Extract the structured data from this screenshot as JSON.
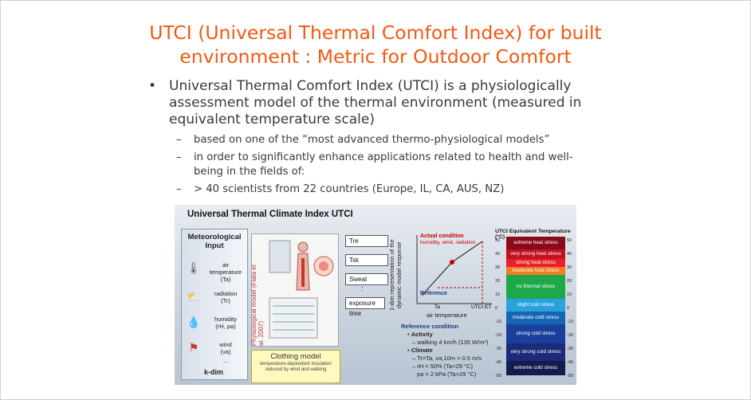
{
  "slide": {
    "title_line1": "UTCI (Universal Thermal Comfort Index) for built",
    "title_line2": "environment : Metric for Outdoor Comfort",
    "bullet_main": "Universal Thermal Comfort Index (UTCI) is a physiologically assessment model of the thermal environment (measured in equivalent temperature scale)",
    "sub_bullets": [
      "based on one of the “most advanced thermo-physiological models”",
      "in order to significantly enhance applications related to health and well-being in the fields of:",
      "> 40 scientists from 22 countries (Europe, IL, CA, AUS, NZ)"
    ]
  },
  "figure": {
    "title": "Universal Thermal Climate Index UTCI",
    "meteo_heading_1": "Meteorological",
    "meteo_heading_2": "Input",
    "inputs": [
      {
        "label": "air temperature",
        "symbol": "(Ta)",
        "icon": "thermometer-icon"
      },
      {
        "label": "radiation",
        "symbol": "(Tr)",
        "icon": "sun-cloud-icon"
      },
      {
        "label": "humidity",
        "symbol": "(rH, pa)",
        "icon": "droplet-icon"
      },
      {
        "label": "wind",
        "symbol": "(va)",
        "icon": "windsock-icon"
      }
    ],
    "ellipsis": "...",
    "kdim": "k-dim",
    "physio_label": "Physiological model",
    "physio_sub": "(Fiala et al. 2007)",
    "outputs": [
      "Tre",
      "Tsk",
      "Sweat",
      ":",
      "exposure time"
    ],
    "clothing_title": "Clothing model",
    "clothing_sub": "temperature-dependent insulation reduced by wind and walking",
    "response_label": "1-dim representation of the dynamic model response",
    "graph": {
      "actual_title": "Actual condition",
      "actual_sub": "humidity, wind, radiation",
      "reference": "Reference",
      "x_ta": "Ta",
      "x_utci": "UTCI ET",
      "x_label": "air temperature"
    },
    "ref_condition": {
      "heading": "Reference condition",
      "activity": "Activity",
      "activity_detail": "– walking 4 km/h (135 W/m²)",
      "climate": "Climate",
      "c1": "– Tr=Ta, va,10m = 0.5 m/s",
      "c2": "– rH = 50%  (Ta<29 °C)",
      "c3": "pa = 2 kPa (Ta>29 °C)"
    },
    "scale_title": "UTCI Equivalent Temperature (°C)",
    "bands": [
      {
        "label": "extreme heat stress",
        "color": "#8b0a1a"
      },
      {
        "label": "very strong heat stress",
        "color": "#c1121f"
      },
      {
        "label": "strong heat stress",
        "color": "#e8202a"
      },
      {
        "label": "moderate heat stress",
        "color": "#f07d22"
      },
      {
        "label": "no thermal stress",
        "color": "#1fa84a"
      },
      {
        "label": "slight cold stress",
        "color": "#2aa3dc"
      },
      {
        "label": "moderate cold stress",
        "color": "#1565b5"
      },
      {
        "label": "strong cold stress",
        "color": "#1a3f9c"
      },
      {
        "label": "very strong cold stress",
        "color": "#1b2a7a"
      },
      {
        "label": "extreme cold stress",
        "color": "#141c4f"
      }
    ],
    "ticks": [
      "50",
      "40",
      "30",
      "20",
      "10",
      "0",
      "-10",
      "-20",
      "-30",
      "-40",
      "-50"
    ]
  }
}
